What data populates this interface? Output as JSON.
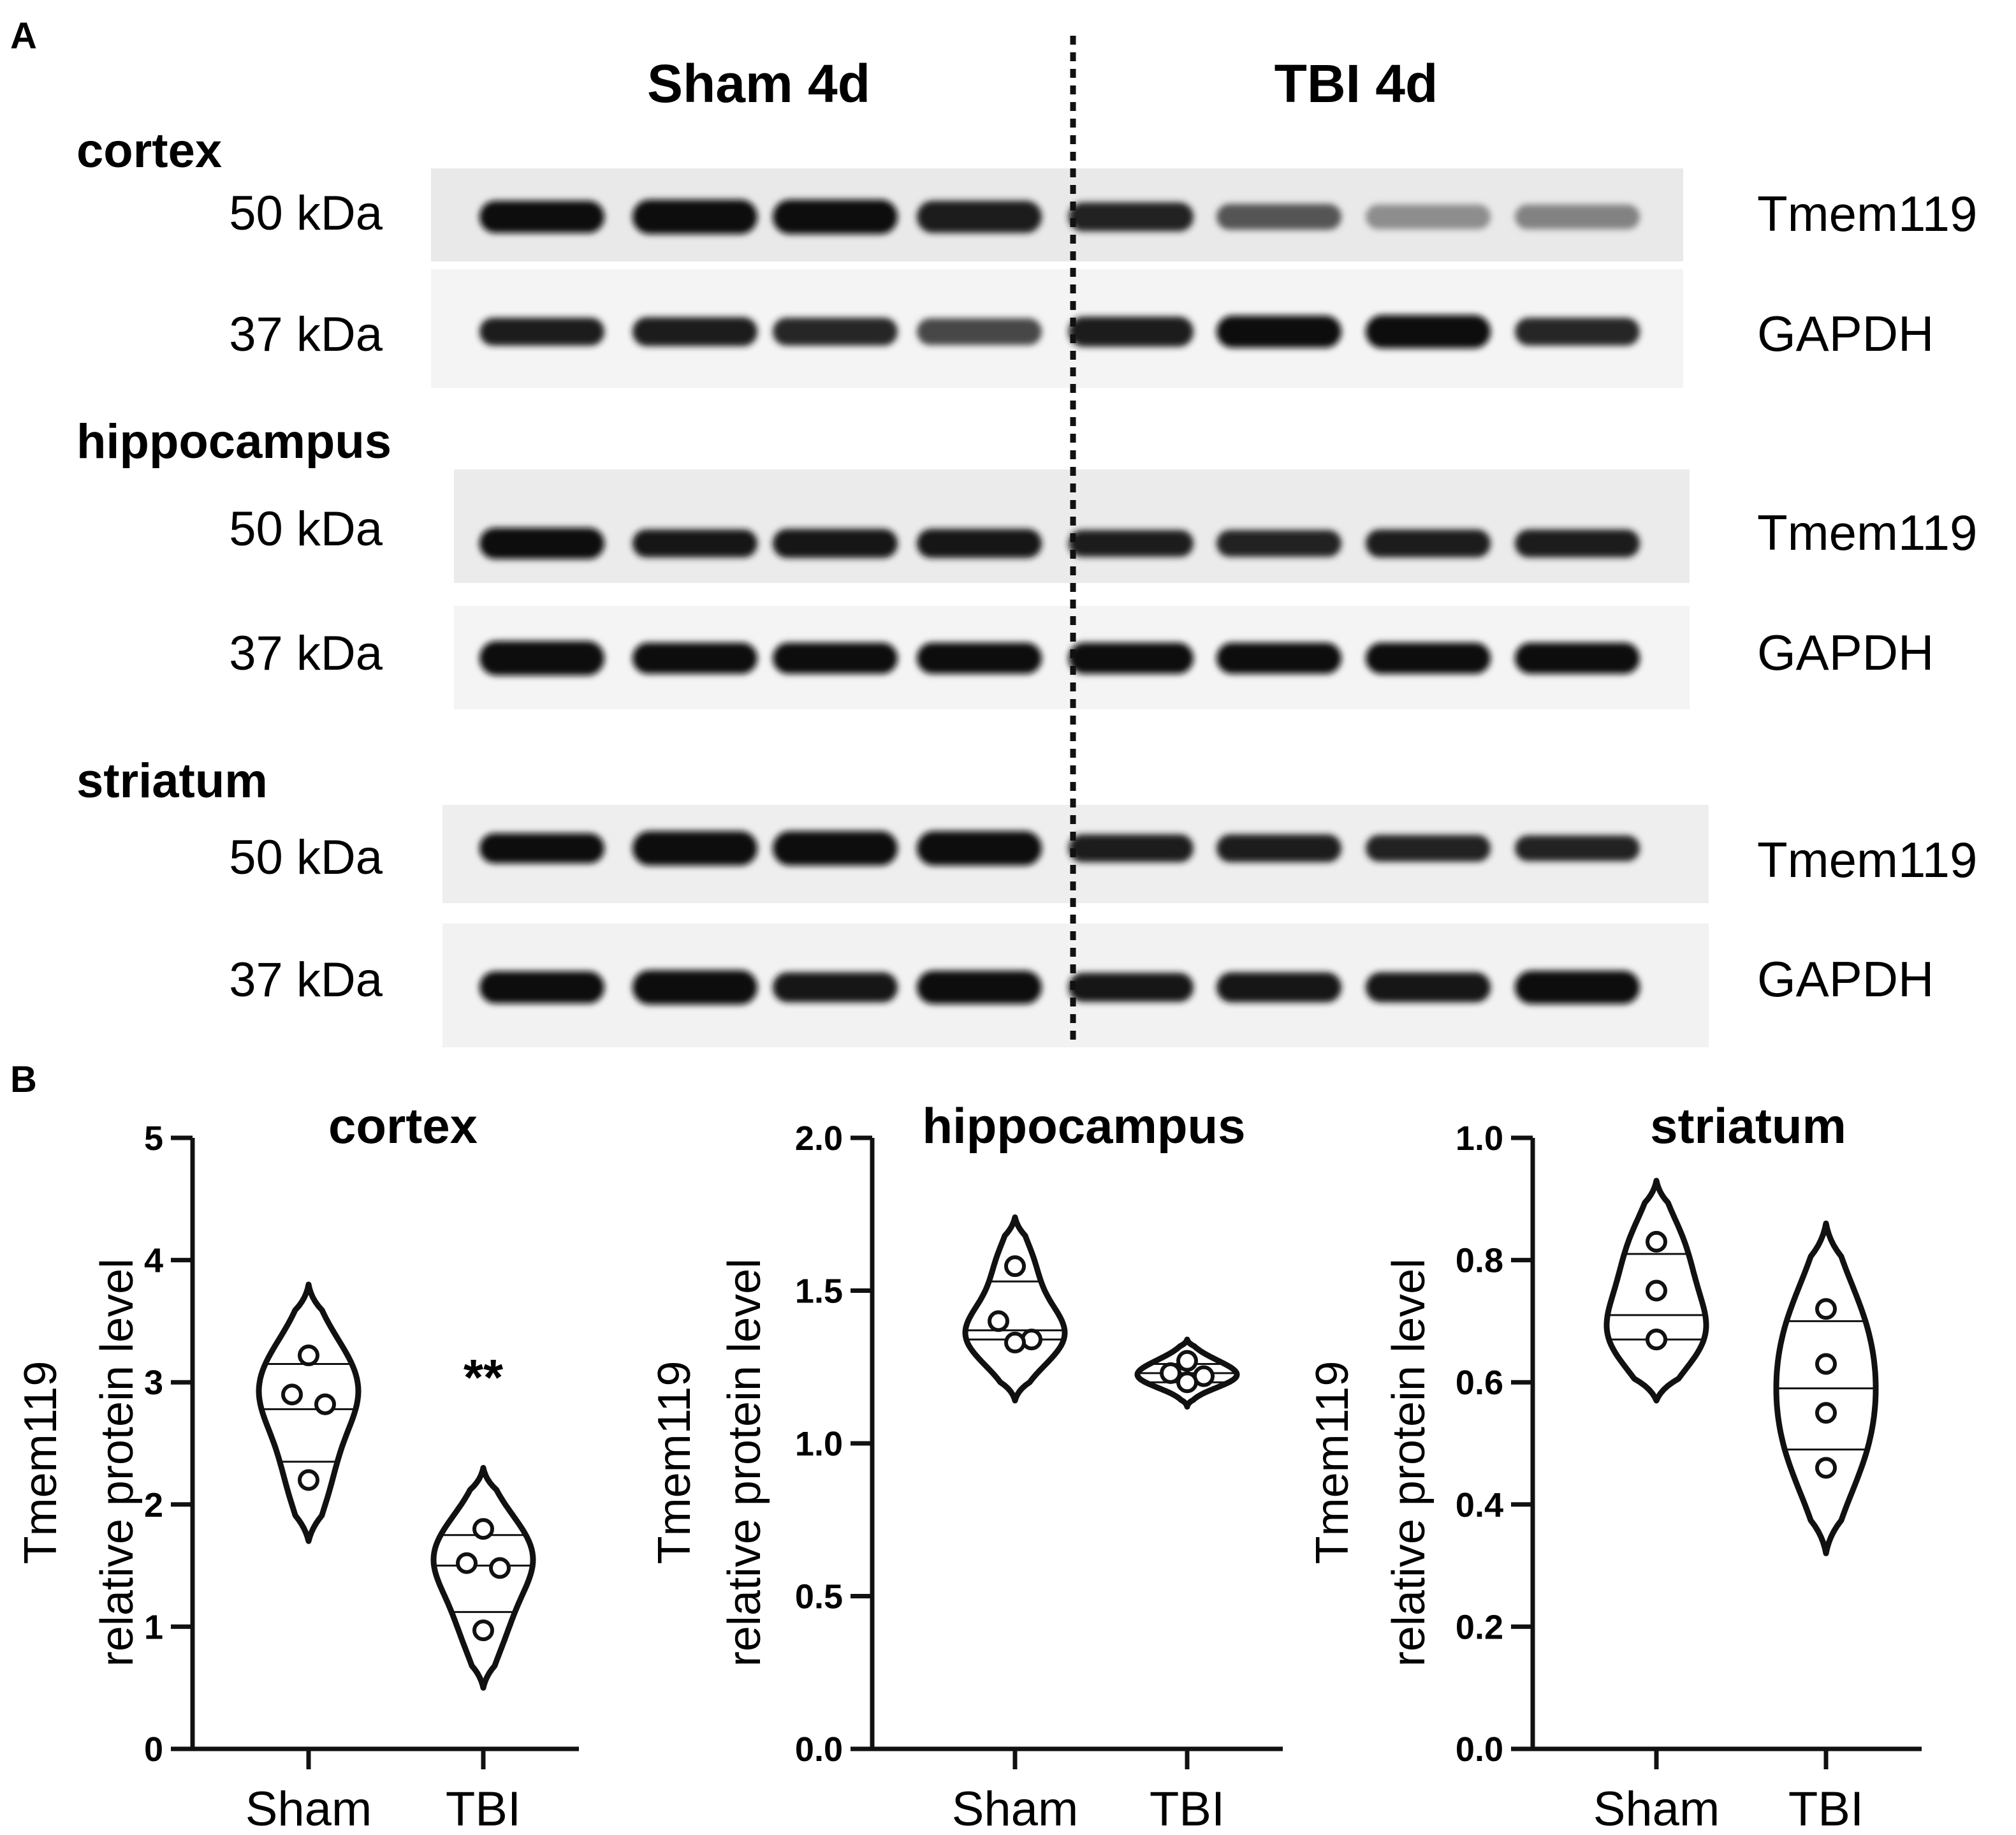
{
  "panel_labels": {
    "a": "A",
    "b": "B"
  },
  "blot": {
    "groups": [
      {
        "id": "sham",
        "label": "Sham 4d"
      },
      {
        "id": "tbi",
        "label": "TBI 4d"
      }
    ],
    "lanes_per_group": 4,
    "regions": [
      {
        "id": "cortex",
        "name": "cortex",
        "rows": [
          {
            "kda": "50 kDa",
            "protein": "Tmem119",
            "intensity": [
              1.0,
              1.0,
              1.0,
              0.92,
              0.9,
              0.62,
              0.32,
              0.38
            ],
            "thickness": [
              0.9,
              1.0,
              1.0,
              0.9,
              0.75,
              0.6,
              0.55,
              0.55
            ]
          },
          {
            "kda": "37 kDa",
            "protein": "GAPDH",
            "intensity": [
              0.92,
              0.92,
              0.88,
              0.7,
              0.92,
              1.0,
              1.0,
              0.88
            ],
            "thickness": [
              0.7,
              0.75,
              0.7,
              0.65,
              0.8,
              0.9,
              0.95,
              0.7
            ]
          }
        ]
      },
      {
        "id": "hippocampus",
        "name": "hippocampus",
        "rows": [
          {
            "kda": "50 kDa",
            "protein": "Tmem119",
            "intensity": [
              1.0,
              0.95,
              0.95,
              0.95,
              0.92,
              0.9,
              0.92,
              0.92
            ],
            "thickness": [
              0.85,
              0.7,
              0.75,
              0.75,
              0.65,
              0.65,
              0.7,
              0.7
            ]
          },
          {
            "kda": "37 kDa",
            "protein": "GAPDH",
            "intensity": [
              1.0,
              1.0,
              1.0,
              1.0,
              1.0,
              1.0,
              1.0,
              1.0
            ],
            "thickness": [
              1.0,
              0.85,
              0.85,
              0.85,
              0.85,
              0.85,
              0.85,
              0.85
            ]
          }
        ]
      },
      {
        "id": "striatum",
        "name": "striatum",
        "rows": [
          {
            "kda": "50 kDa",
            "protein": "Tmem119",
            "intensity": [
              1.0,
              1.0,
              1.0,
              1.0,
              0.92,
              0.92,
              0.9,
              0.9
            ],
            "thickness": [
              0.8,
              1.0,
              1.0,
              1.0,
              0.7,
              0.7,
              0.65,
              0.6
            ]
          },
          {
            "kda": "37 kDa",
            "protein": "GAPDH",
            "intensity": [
              1.0,
              1.0,
              0.95,
              1.0,
              0.95,
              0.95,
              0.95,
              1.0
            ],
            "thickness": [
              0.9,
              1.0,
              0.8,
              0.95,
              0.75,
              0.8,
              0.8,
              0.95
            ]
          }
        ]
      }
    ]
  },
  "chart_data": [
    {
      "type": "violin",
      "title": "cortex",
      "ylabel": "Tmem119\nrelative protein level",
      "ylim": [
        0,
        5
      ],
      "yticks": [
        "0",
        "1",
        "2",
        "3",
        "4",
        "5"
      ],
      "categories": [
        "Sham",
        "TBI"
      ],
      "series": [
        {
          "values": [
            3.22,
            2.9,
            2.82,
            2.2
          ],
          "lines": [
            3.15,
            2.78,
            2.35
          ],
          "range": [
            1.7,
            3.8
          ]
        },
        {
          "values": [
            1.8,
            1.52,
            1.48,
            0.97
          ],
          "lines": [
            1.75,
            1.5,
            1.12
          ],
          "range": [
            0.5,
            2.3
          ]
        }
      ],
      "annotations": [
        {
          "category": "TBI",
          "text": "**",
          "y": 3.2
        }
      ]
    },
    {
      "type": "violin",
      "title": "hippocampus",
      "ylabel": "Tmem119\nrelative protein level",
      "ylim": [
        0,
        2
      ],
      "yticks": [
        "0.0",
        "0.5",
        "1.0",
        "1.5",
        "2.0"
      ],
      "categories": [
        "Sham",
        "TBI"
      ],
      "series": [
        {
          "values": [
            1.58,
            1.4,
            1.34,
            1.33
          ],
          "lines": [
            1.53,
            1.37,
            1.34
          ],
          "range": [
            1.14,
            1.74
          ]
        },
        {
          "values": [
            1.27,
            1.23,
            1.22,
            1.2
          ],
          "lines": [
            1.26,
            1.23,
            1.2
          ],
          "range": [
            1.12,
            1.34
          ]
        }
      ]
    },
    {
      "type": "violin",
      "title": "striatum",
      "ylabel": "Tmem119\nrelative protein level",
      "ylim": [
        0,
        1
      ],
      "yticks": [
        "0.0",
        "0.2",
        "0.4",
        "0.6",
        "0.8",
        "1.0"
      ],
      "categories": [
        "Sham",
        "TBI"
      ],
      "series": [
        {
          "values": [
            0.83,
            0.75,
            0.67,
            0.67
          ],
          "lines": [
            0.81,
            0.71,
            0.67
          ],
          "range": [
            0.57,
            0.93
          ]
        },
        {
          "values": [
            0.72,
            0.63,
            0.55,
            0.46
          ],
          "lines": [
            0.7,
            0.59,
            0.49
          ],
          "range": [
            0.32,
            0.86
          ]
        }
      ]
    }
  ]
}
